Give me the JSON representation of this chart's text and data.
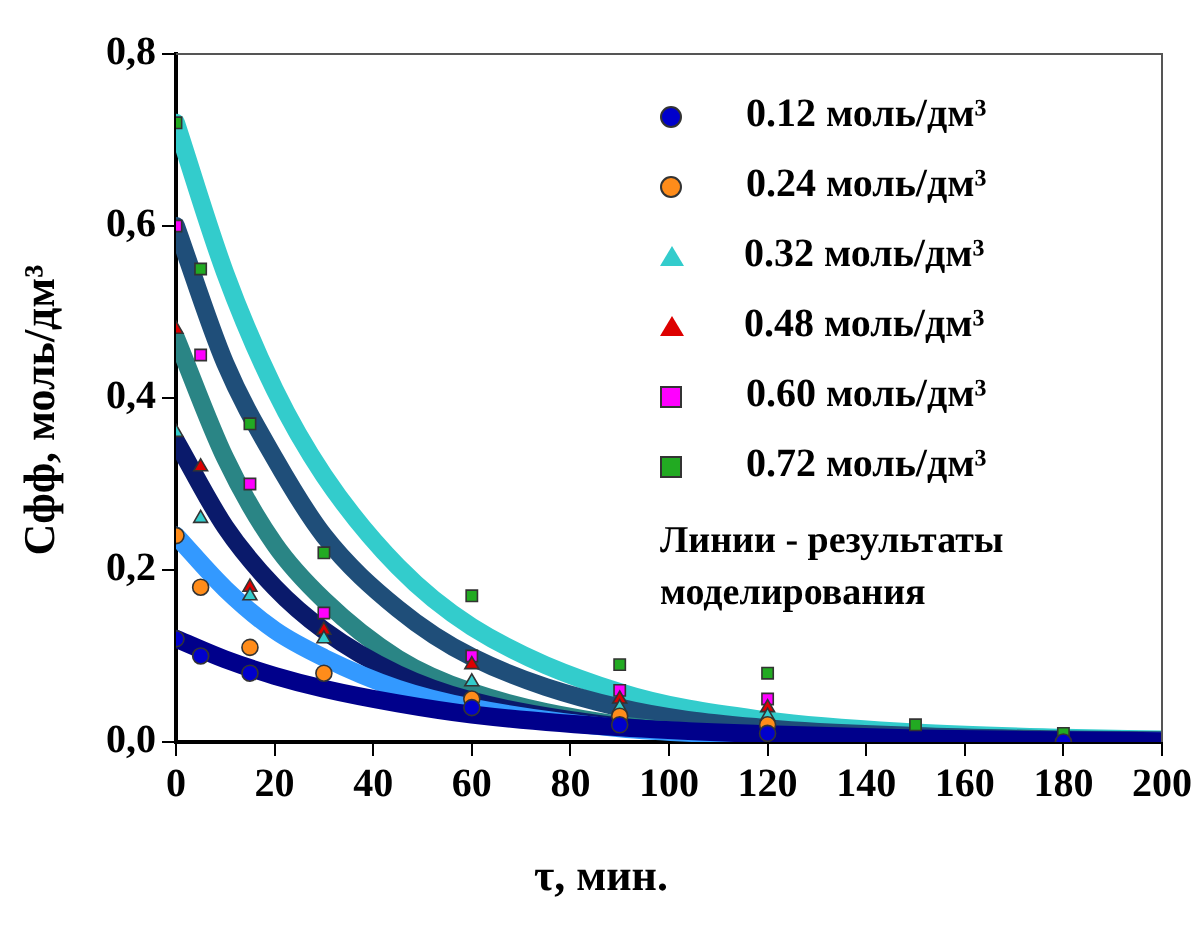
{
  "chart_data": {
    "type": "scatter",
    "xlabel": "τ, мин.",
    "ylabel": "Cфф, моль/дм³",
    "x": [
      0,
      5,
      15,
      30,
      60,
      90,
      120,
      150,
      180
    ],
    "xlim": [
      0,
      200
    ],
    "xticks": [
      0,
      20,
      40,
      60,
      80,
      100,
      120,
      140,
      160,
      180,
      200
    ],
    "ylim": [
      0,
      0.8
    ],
    "yticks": [
      {
        "value": 0,
        "label": "0,0"
      },
      {
        "value": 0.2,
        "label": "0,2"
      },
      {
        "value": 0.4,
        "label": "0,4"
      },
      {
        "value": 0.6,
        "label": "0,6"
      },
      {
        "value": 0.8,
        "label": "0,8"
      }
    ],
    "grid": false,
    "legend": "top right",
    "annotations": [
      "Линии - результаты моделирования"
    ],
    "series": [
      {
        "type": "line",
        "color": "#00008b",
        "x": [
          0,
          10,
          20,
          30,
          45,
          60,
          90,
          120,
          150,
          180,
          200
        ],
        "values": [
          0.12,
          0.096,
          0.077,
          0.062,
          0.045,
          0.032,
          0.017,
          0.009,
          0.004,
          0.002,
          0.001
        ]
      },
      {
        "type": "line",
        "color": "#3399ff",
        "x": [
          0,
          10,
          20,
          30,
          45,
          60,
          90,
          120,
          150,
          180,
          200
        ],
        "values": [
          0.24,
          0.178,
          0.13,
          0.098,
          0.062,
          0.04,
          0.016,
          0.007,
          0.003,
          0.001,
          0.001
        ]
      },
      {
        "type": "line",
        "color": "#0a1a6b",
        "x": [
          0,
          10,
          20,
          30,
          45,
          60,
          90,
          120,
          150,
          180,
          200
        ],
        "values": [
          0.35,
          0.25,
          0.18,
          0.13,
          0.079,
          0.048,
          0.018,
          0.007,
          0.002,
          0.001,
          0.001
        ]
      },
      {
        "type": "line",
        "color": "#2a8585",
        "x": [
          0,
          10,
          20,
          30,
          45,
          60,
          90,
          120,
          150,
          180,
          200
        ],
        "values": [
          0.47,
          0.33,
          0.23,
          0.165,
          0.097,
          0.058,
          0.02,
          0.007,
          0.002,
          0.001,
          0.001
        ]
      },
      {
        "type": "line",
        "color": "#1f4e79",
        "x": [
          0,
          10,
          20,
          30,
          45,
          60,
          90,
          120,
          150,
          180,
          200
        ],
        "values": [
          0.6,
          0.44,
          0.33,
          0.24,
          0.155,
          0.099,
          0.04,
          0.016,
          0.007,
          0.003,
          0.002
        ]
      },
      {
        "type": "line",
        "color": "#33cccc",
        "x": [
          0,
          10,
          20,
          30,
          45,
          60,
          90,
          120,
          150,
          180,
          200
        ],
        "values": [
          0.72,
          0.545,
          0.41,
          0.31,
          0.204,
          0.134,
          0.058,
          0.025,
          0.011,
          0.005,
          0.003
        ]
      },
      {
        "name": "0.12 моль/дм³",
        "color": "#0000cc",
        "marker": "circle",
        "values": [
          0.12,
          0.1,
          0.08,
          null,
          0.04,
          0.02,
          0.01,
          null,
          0
        ]
      },
      {
        "name": "0.24 моль/дм³",
        "color": "#ff8c1a",
        "marker": "circle",
        "values": [
          0.24,
          0.18,
          0.11,
          0.08,
          0.05,
          0.03,
          0.02,
          null,
          null
        ]
      },
      {
        "name": "0.32 моль/дм³",
        "color": "#33cccc",
        "marker": "triangle",
        "values": [
          0.36,
          0.26,
          0.17,
          0.12,
          0.07,
          0.04,
          0.03,
          null,
          null
        ]
      },
      {
        "name": "0.48 моль/дм³",
        "color": "#dd0000",
        "marker": "triangle",
        "values": [
          0.48,
          0.32,
          0.18,
          0.13,
          0.09,
          0.05,
          0.04,
          null,
          null
        ]
      },
      {
        "name": "0.60 моль/дм³",
        "color": "#ff00ff",
        "marker": "square",
        "values": [
          0.6,
          0.45,
          0.3,
          0.15,
          0.1,
          0.06,
          0.05,
          null,
          null
        ]
      },
      {
        "name": "0.72 моль/дм³",
        "color": "#22aa22",
        "marker": "square",
        "values": [
          0.72,
          0.55,
          0.37,
          0.22,
          0.17,
          0.09,
          0.08,
          0.02,
          0.01
        ]
      }
    ]
  }
}
